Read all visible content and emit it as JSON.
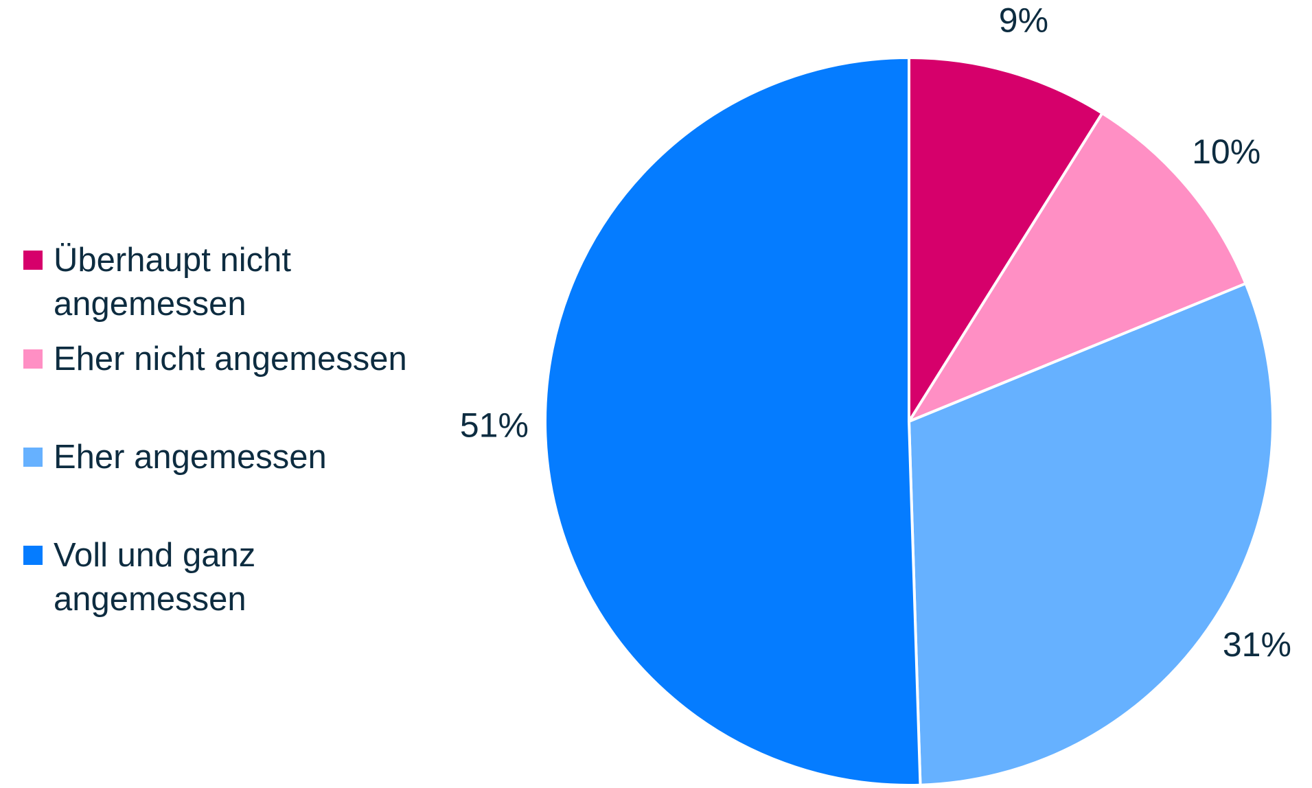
{
  "chart_data": {
    "type": "pie",
    "categories": [
      "Überhaupt nicht angemessen",
      "Eher nicht angemessen",
      "Eher angemessen",
      "Voll und ganz angemessen"
    ],
    "values": [
      9,
      10,
      31,
      51
    ],
    "value_labels": [
      "9%",
      "10%",
      "31%",
      "51%"
    ],
    "colors": [
      "#d6006b",
      "#ff8fc4",
      "#66b1ff",
      "#057cff"
    ],
    "legend": "left"
  }
}
